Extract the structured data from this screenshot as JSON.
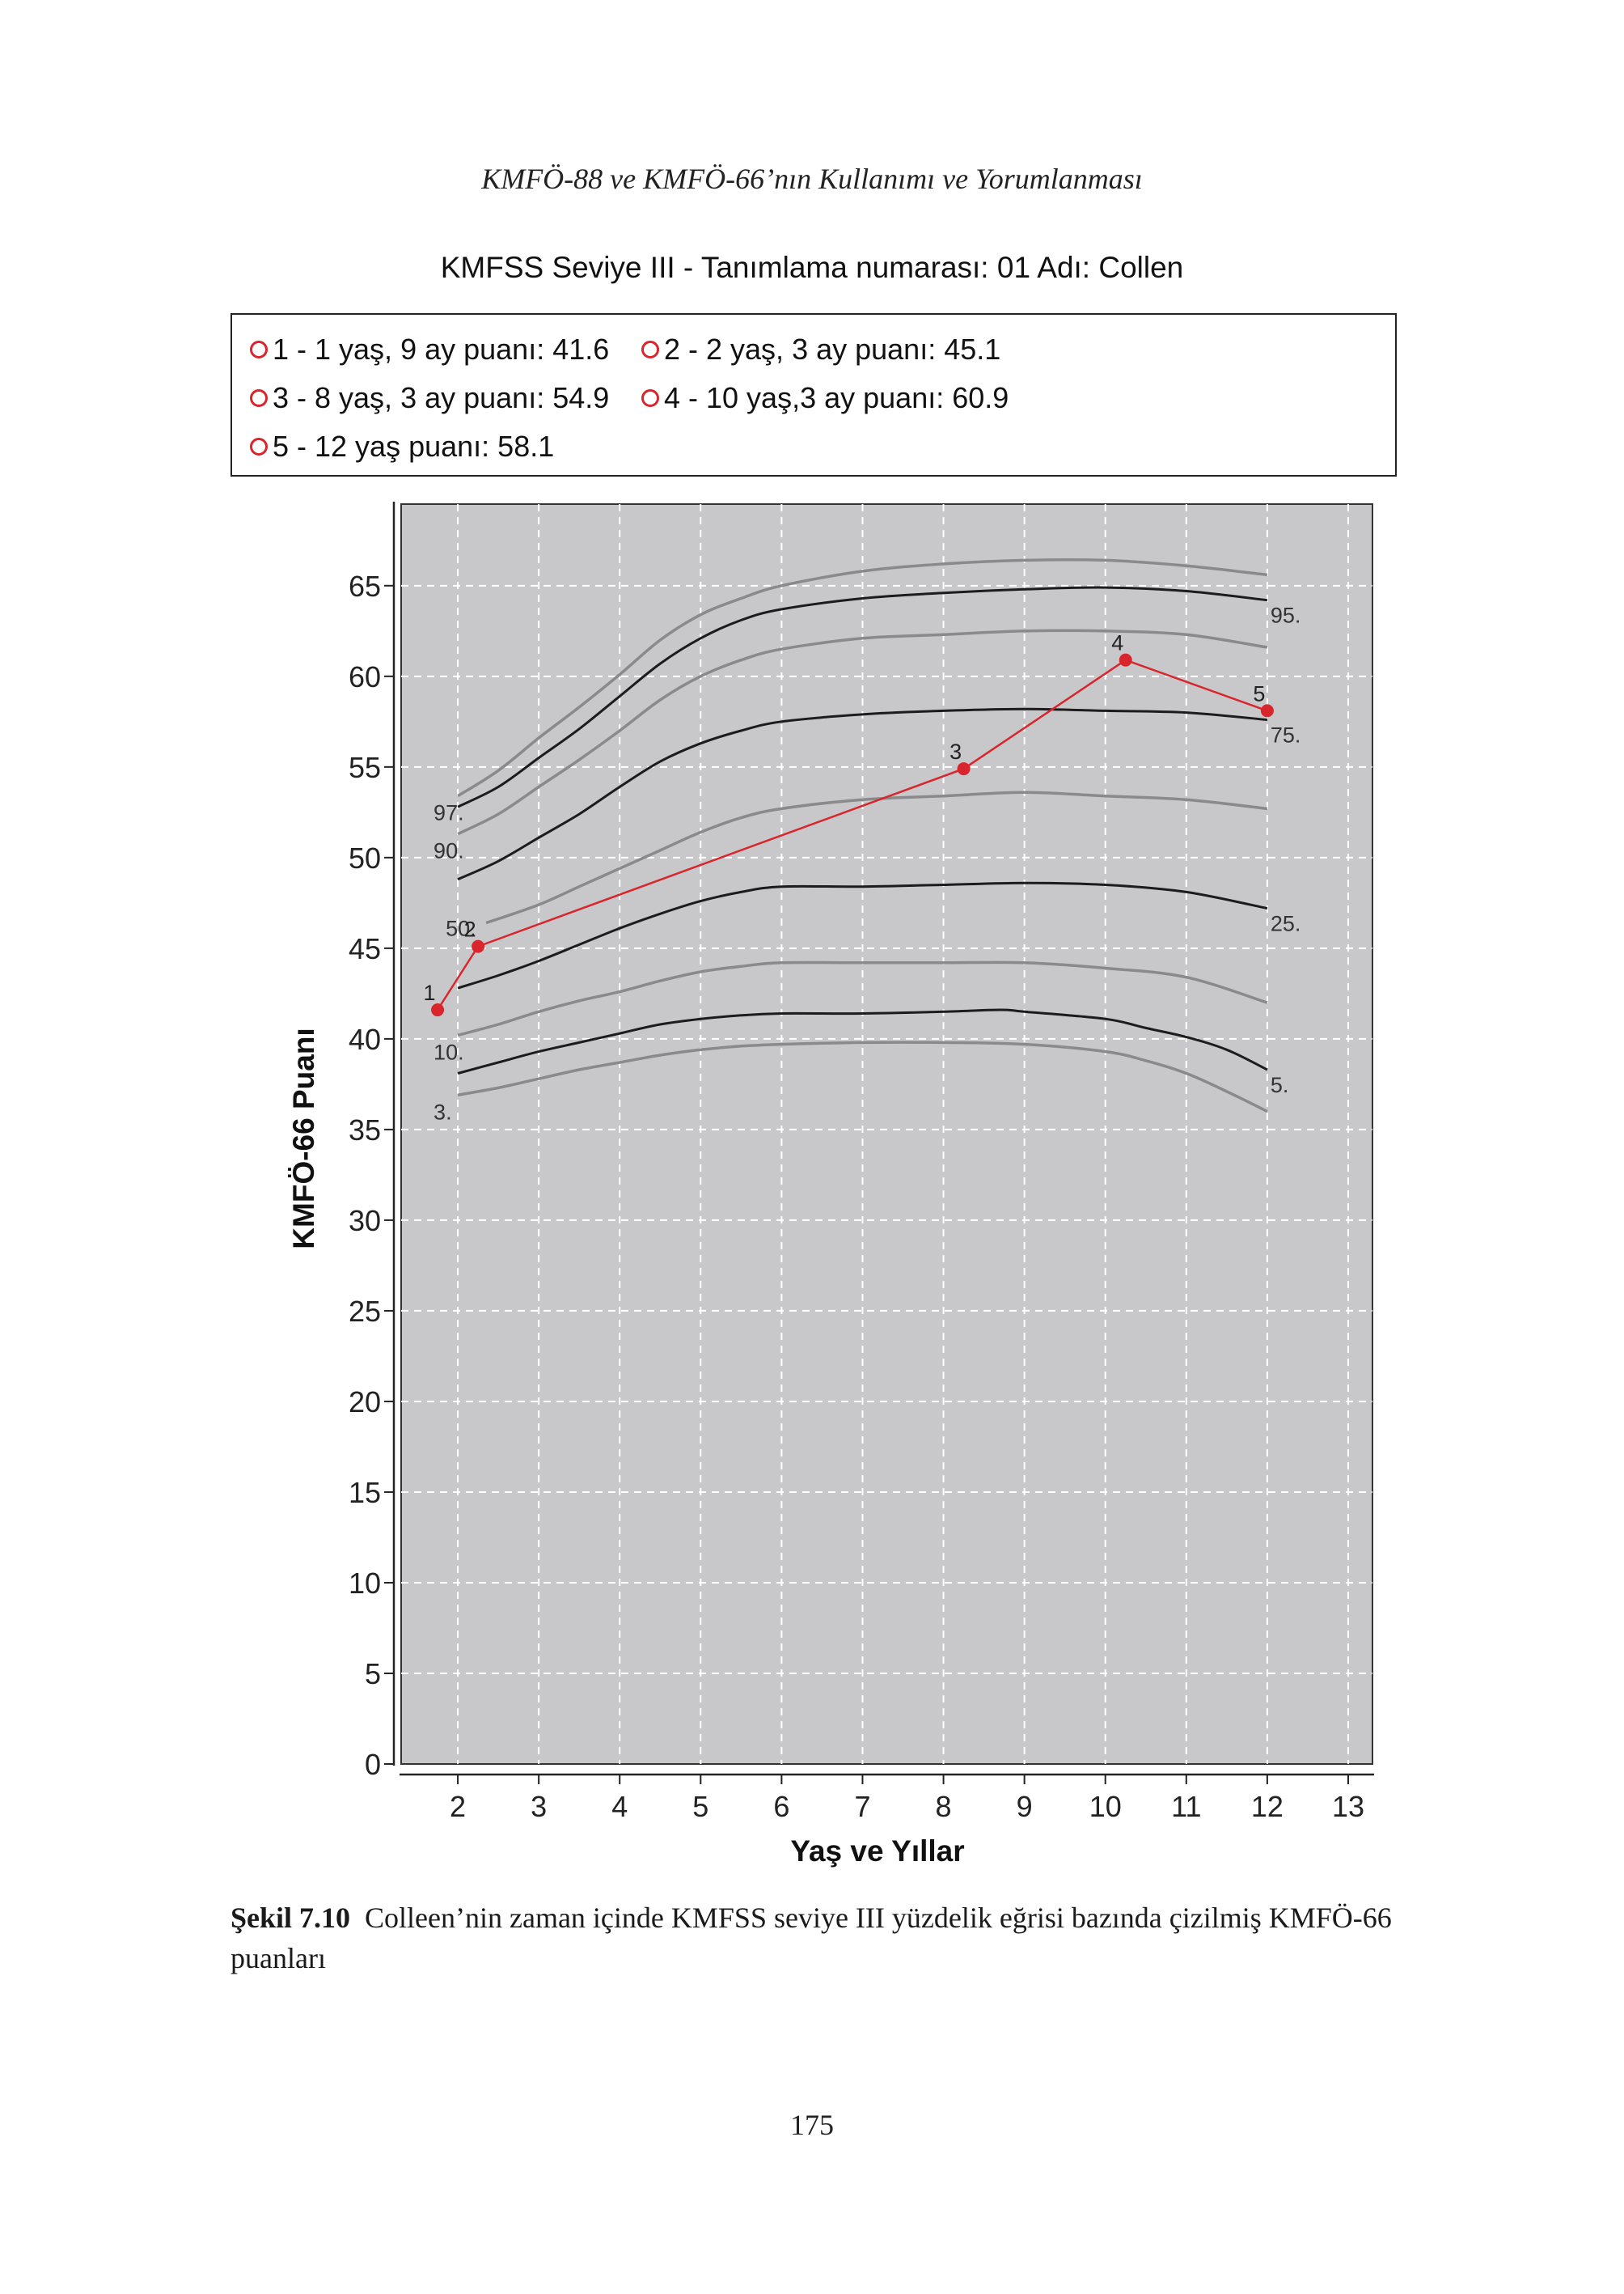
{
  "page": {
    "running_head": "KMFÖ-88 ve KMFÖ-66’nın Kullanımı ve Yorumlanması",
    "page_number": "175"
  },
  "caption": {
    "label": "Şekil 7.10",
    "text": "Colleen’nin zaman içinde KMFSS seviye III yüzdelik eğrisi bazında çizilmiş KMFÖ-66 puanları"
  },
  "legend": {
    "items": [
      "1 - 1 yaş, 9 ay puanı: 41.6",
      "2 - 2 yaş, 3 ay puanı: 45.1",
      "3 - 8 yaş, 3 ay puanı: 54.9",
      "4 - 10 yaş,3 ay puanı: 60.9",
      "5 - 12 yaş puanı: 58.1"
    ]
  },
  "chart_data": {
    "type": "line",
    "title": "KMFSS Seviye III - Tanımlama numarası: 01 Adı: Collen",
    "xlabel": "Yaş ve Yıllar",
    "ylabel": "KMFÖ-66 Puanı",
    "xlim": [
      1.3,
      13.3
    ],
    "ylim": [
      0,
      69.5
    ],
    "x_ticks": [
      2,
      3,
      4,
      5,
      6,
      7,
      8,
      9,
      10,
      11,
      12,
      13
    ],
    "y_ticks": [
      0,
      5,
      10,
      15,
      20,
      25,
      30,
      35,
      40,
      45,
      50,
      55,
      60,
      65
    ],
    "grid": true,
    "colors": {
      "plot_background": "#c8c8ca",
      "grid": "#ffffff",
      "patient": "#d9262c",
      "dark_curve": "#1c1c1c",
      "light_curve": "#8a8a8a",
      "legend_marker": "#d9262c"
    },
    "percentile_curves": [
      {
        "name": "97.",
        "style": "light",
        "points": [
          [
            2,
            53.4
          ],
          [
            2.5,
            54.8
          ],
          [
            3,
            56.6
          ],
          [
            3.5,
            58.3
          ],
          [
            4,
            60.1
          ],
          [
            4.5,
            62.0
          ],
          [
            5,
            63.4
          ],
          [
            5.5,
            64.3
          ],
          [
            6,
            65.0
          ],
          [
            7,
            65.8
          ],
          [
            8,
            66.2
          ],
          [
            9,
            66.4
          ],
          [
            10,
            66.4
          ],
          [
            11,
            66.1
          ],
          [
            12,
            65.6
          ]
        ]
      },
      {
        "name": "95.",
        "style": "dark",
        "points": [
          [
            2,
            52.8
          ],
          [
            2.5,
            53.9
          ],
          [
            3,
            55.5
          ],
          [
            3.5,
            57.1
          ],
          [
            4,
            58.9
          ],
          [
            4.5,
            60.7
          ],
          [
            5,
            62.1
          ],
          [
            5.5,
            63.1
          ],
          [
            6,
            63.7
          ],
          [
            7,
            64.3
          ],
          [
            8,
            64.6
          ],
          [
            9,
            64.8
          ],
          [
            10,
            64.9
          ],
          [
            11,
            64.7
          ],
          [
            12,
            64.2
          ]
        ]
      },
      {
        "name": "90.",
        "style": "light",
        "points": [
          [
            2,
            51.3
          ],
          [
            2.5,
            52.4
          ],
          [
            3,
            53.9
          ],
          [
            3.5,
            55.4
          ],
          [
            4,
            57.0
          ],
          [
            4.5,
            58.7
          ],
          [
            5,
            60.0
          ],
          [
            5.5,
            60.9
          ],
          [
            6,
            61.5
          ],
          [
            7,
            62.1
          ],
          [
            8,
            62.3
          ],
          [
            9,
            62.5
          ],
          [
            10,
            62.5
          ],
          [
            11,
            62.3
          ],
          [
            12,
            61.6
          ]
        ]
      },
      {
        "name": "75.",
        "style": "dark",
        "points": [
          [
            2,
            48.8
          ],
          [
            2.5,
            49.8
          ],
          [
            3,
            51.1
          ],
          [
            3.5,
            52.4
          ],
          [
            4,
            53.9
          ],
          [
            4.5,
            55.3
          ],
          [
            5,
            56.3
          ],
          [
            5.5,
            57.0
          ],
          [
            6,
            57.5
          ],
          [
            7,
            57.9
          ],
          [
            8,
            58.1
          ],
          [
            9,
            58.2
          ],
          [
            10,
            58.1
          ],
          [
            11,
            58.0
          ],
          [
            12,
            57.6
          ]
        ]
      },
      {
        "name": "50.",
        "style": "light",
        "points": [
          [
            2.35,
            46.4
          ],
          [
            3,
            47.4
          ],
          [
            3.5,
            48.4
          ],
          [
            4,
            49.4
          ],
          [
            4.5,
            50.4
          ],
          [
            5,
            51.4
          ],
          [
            5.5,
            52.2
          ],
          [
            6,
            52.7
          ],
          [
            7,
            53.2
          ],
          [
            8,
            53.4
          ],
          [
            9,
            53.6
          ],
          [
            10,
            53.4
          ],
          [
            11,
            53.2
          ],
          [
            12,
            52.7
          ]
        ]
      },
      {
        "name": "25.",
        "style": "dark",
        "points": [
          [
            2,
            42.8
          ],
          [
            2.5,
            43.5
          ],
          [
            3,
            44.3
          ],
          [
            3.5,
            45.2
          ],
          [
            4,
            46.1
          ],
          [
            4.5,
            46.9
          ],
          [
            5,
            47.6
          ],
          [
            5.5,
            48.1
          ],
          [
            6,
            48.4
          ],
          [
            7,
            48.4
          ],
          [
            8,
            48.5
          ],
          [
            9,
            48.6
          ],
          [
            10,
            48.5
          ],
          [
            11,
            48.1
          ],
          [
            12,
            47.2
          ]
        ]
      },
      {
        "name": "10.",
        "style": "light",
        "points": [
          [
            2,
            40.2
          ],
          [
            2.5,
            40.8
          ],
          [
            3,
            41.5
          ],
          [
            3.5,
            42.1
          ],
          [
            4,
            42.6
          ],
          [
            4.5,
            43.2
          ],
          [
            5,
            43.7
          ],
          [
            5.5,
            44.0
          ],
          [
            6,
            44.2
          ],
          [
            7,
            44.2
          ],
          [
            8,
            44.2
          ],
          [
            9,
            44.2
          ],
          [
            10,
            43.9
          ],
          [
            11,
            43.4
          ],
          [
            12,
            42.0
          ]
        ]
      },
      {
        "name": "5.",
        "style": "dark",
        "points": [
          [
            2,
            38.1
          ],
          [
            2.5,
            38.7
          ],
          [
            3,
            39.3
          ],
          [
            3.5,
            39.8
          ],
          [
            4,
            40.3
          ],
          [
            4.5,
            40.8
          ],
          [
            5,
            41.1
          ],
          [
            5.5,
            41.3
          ],
          [
            6,
            41.4
          ],
          [
            7,
            41.4
          ],
          [
            8,
            41.5
          ],
          [
            8.7,
            41.6
          ],
          [
            9,
            41.5
          ],
          [
            10,
            41.1
          ],
          [
            10.5,
            40.6
          ],
          [
            11,
            40.1
          ],
          [
            11.5,
            39.4
          ],
          [
            12,
            38.3
          ]
        ]
      },
      {
        "name": "3.",
        "style": "light",
        "points": [
          [
            2,
            36.9
          ],
          [
            2.5,
            37.3
          ],
          [
            3,
            37.8
          ],
          [
            3.5,
            38.3
          ],
          [
            4,
            38.7
          ],
          [
            4.5,
            39.1
          ],
          [
            5,
            39.4
          ],
          [
            5.5,
            39.6
          ],
          [
            6,
            39.7
          ],
          [
            7,
            39.8
          ],
          [
            8,
            39.8
          ],
          [
            9,
            39.7
          ],
          [
            10,
            39.3
          ],
          [
            10.5,
            38.8
          ],
          [
            11,
            38.1
          ],
          [
            11.5,
            37.1
          ],
          [
            12,
            36.0
          ]
        ]
      }
    ],
    "patient_series": {
      "points": [
        {
          "label": "1",
          "x": 1.75,
          "y": 41.6
        },
        {
          "label": "2",
          "x": 2.25,
          "y": 45.1
        },
        {
          "label": "3",
          "x": 8.25,
          "y": 54.9
        },
        {
          "label": "4",
          "x": 10.25,
          "y": 60.9
        },
        {
          "label": "5",
          "x": 12.0,
          "y": 58.1
        }
      ]
    }
  }
}
